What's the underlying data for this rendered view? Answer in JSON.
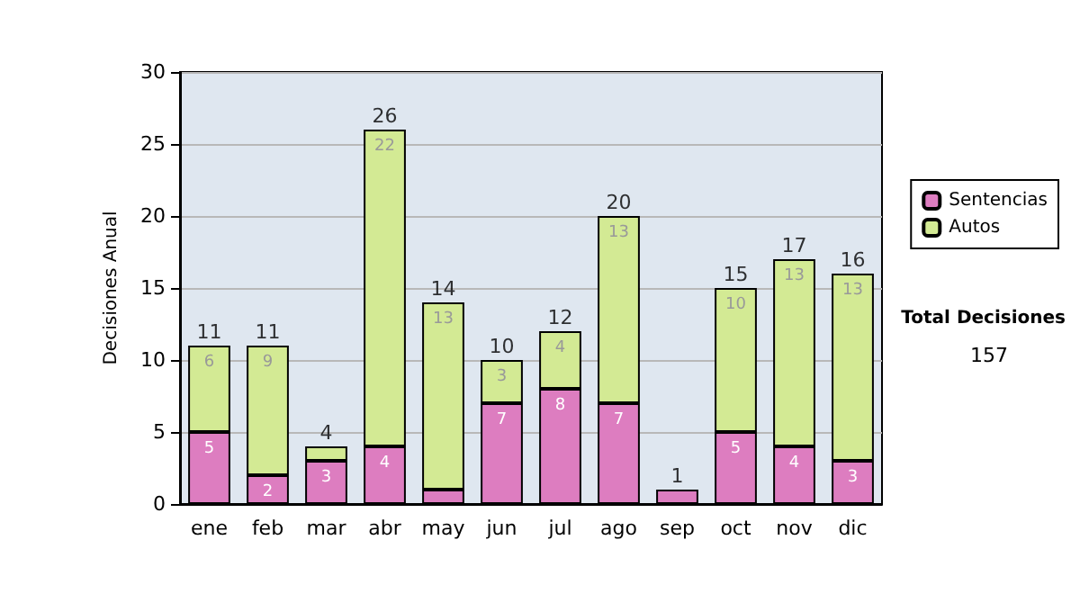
{
  "chart_data": {
    "type": "bar",
    "ylabel": "Decisiones Anual",
    "categories": [
      "ene",
      "feb",
      "mar",
      "abr",
      "may",
      "jun",
      "jul",
      "ago",
      "sep",
      "oct",
      "nov",
      "dic"
    ],
    "series": [
      {
        "name": "Sentencias",
        "color": "#dd7dc0",
        "values": [
          5,
          2,
          3,
          4,
          1,
          7,
          8,
          7,
          1,
          5,
          4,
          3
        ],
        "value_labels": [
          "5",
          "2",
          "3",
          "4",
          null,
          "7",
          "8",
          "7",
          null,
          "5",
          "4",
          "3"
        ]
      },
      {
        "name": "Autos",
        "color": "#d3ea94",
        "values": [
          6,
          9,
          1,
          22,
          13,
          3,
          4,
          13,
          0,
          10,
          13,
          13
        ],
        "value_labels": [
          "6",
          "9",
          null,
          "22",
          "13",
          "3",
          "4",
          "13",
          null,
          "10",
          "13",
          "13"
        ]
      }
    ],
    "stacked": true,
    "totals": [
      "11",
      "11",
      "4",
      "26",
      "14",
      "10",
      "12",
      "20",
      "1",
      "15",
      "17",
      "16"
    ],
    "ylim": [
      0,
      30
    ],
    "yticks": [
      0,
      5,
      10,
      15,
      20,
      25,
      30
    ],
    "grid": "y",
    "legend": "right",
    "annotations": [
      "Total Decisiones",
      "157"
    ]
  }
}
